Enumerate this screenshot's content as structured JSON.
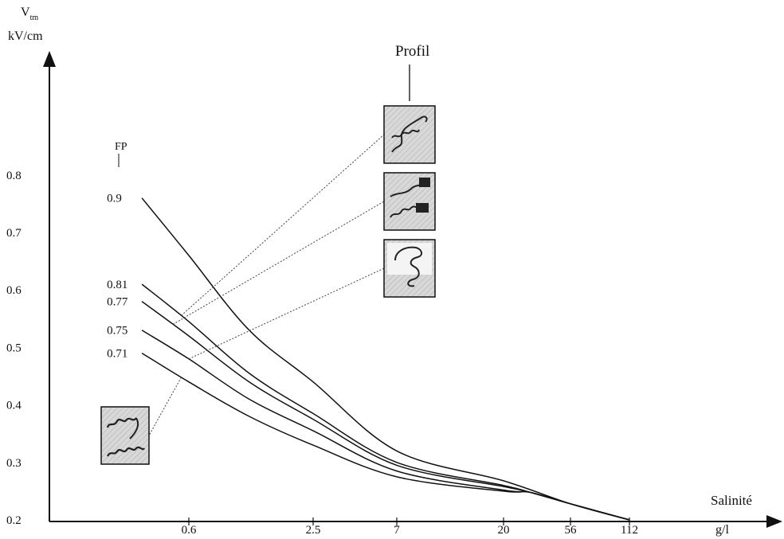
{
  "chart_data": {
    "type": "line",
    "title": "",
    "ylabel": {
      "main": "V",
      "subscript": "tm",
      "unit": "kV/cm"
    },
    "xlabel": "Salinité",
    "xunit": "g/l",
    "x_ticks": [
      "0.6",
      "2.5",
      "7",
      "20",
      "56",
      "112"
    ],
    "y_ticks": [
      "0.2",
      "0.3",
      "0.4",
      "0.5",
      "0.6",
      "0.7",
      "0.8"
    ],
    "ylim": [
      0.2,
      0.8
    ],
    "grid": false,
    "fp_label": "FP",
    "profile_label": "Profil",
    "x_scale": "log",
    "series": [
      {
        "name": "0.9",
        "x": [
          0.35,
          0.6,
          1.2,
          2.5,
          7,
          20,
          56,
          112
        ],
        "y": [
          0.76,
          0.66,
          0.53,
          0.44,
          0.32,
          0.268,
          0.228,
          0.2
        ]
      },
      {
        "name": "0.81",
        "x": [
          0.35,
          0.6,
          1.2,
          2.5,
          7,
          20,
          30,
          56,
          112
        ],
        "y": [
          0.61,
          0.545,
          0.455,
          0.385,
          0.3,
          0.26,
          0.248,
          0.228,
          0.2
        ]
      },
      {
        "name": "0.77",
        "x": [
          0.35,
          0.6,
          1.2,
          2.5,
          7,
          20,
          30,
          56,
          112
        ],
        "y": [
          0.58,
          0.52,
          0.44,
          0.375,
          0.295,
          0.258,
          0.248,
          0.228,
          0.2
        ]
      },
      {
        "name": "0.75",
        "x": [
          0.35,
          0.6,
          1.2,
          2.5,
          7,
          20,
          30,
          56,
          112
        ],
        "y": [
          0.53,
          0.48,
          0.41,
          0.355,
          0.285,
          0.252,
          0.248,
          0.228,
          0.2
        ]
      },
      {
        "name": "0.71",
        "x": [
          0.35,
          0.6,
          1.2,
          2.5,
          7,
          20,
          30,
          56,
          112
        ],
        "y": [
          0.49,
          0.44,
          0.38,
          0.33,
          0.275,
          0.25,
          0.248,
          0.228,
          0.2
        ]
      }
    ]
  }
}
